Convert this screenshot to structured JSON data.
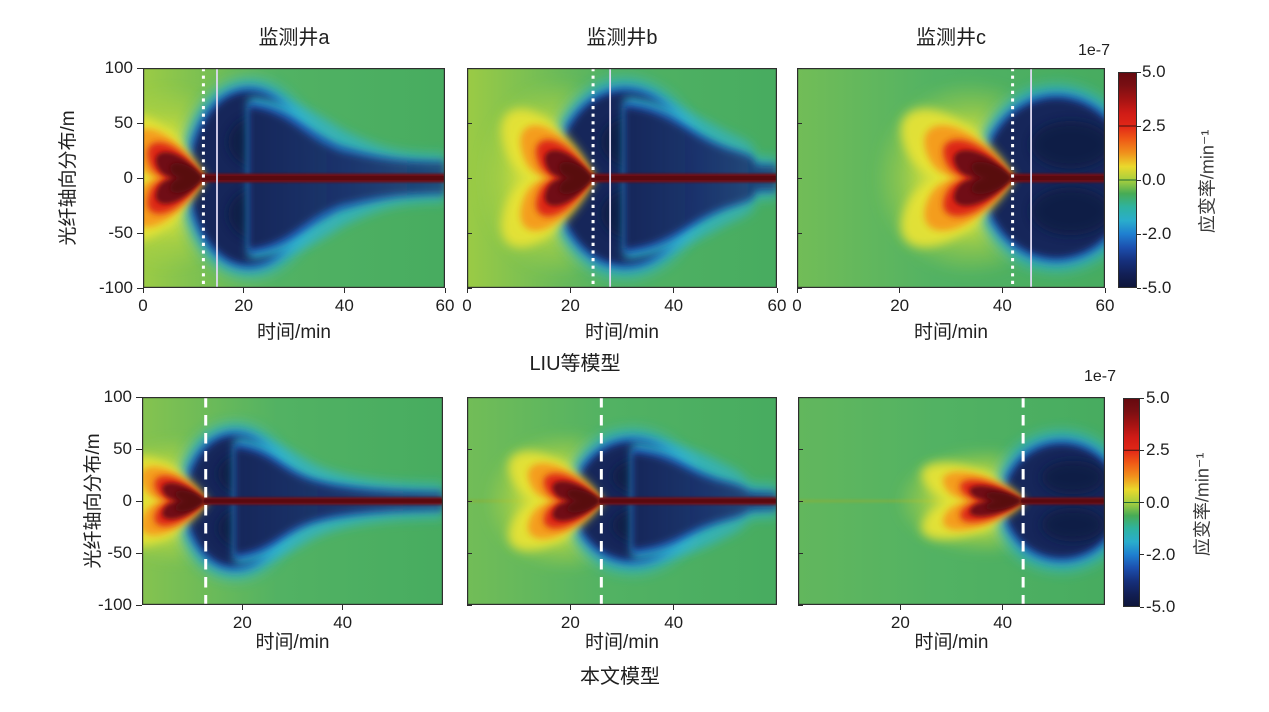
{
  "figure": {
    "row1_label": "LIU等模型",
    "row2_label": "本文模型",
    "xlabel": "时间/min",
    "ylabel": "光纤轴向分布/m",
    "scale_label": "1e-7",
    "colorbar": {
      "label": "应变率/min⁻¹",
      "scale": "1e-7",
      "ticks": [
        "5.0",
        "2.5",
        "0.0",
        "-2.0",
        "-5.0"
      ],
      "vmax": 5.0,
      "vmin": -5.0,
      "gradient": [
        "#64090f",
        "#7a0f13",
        "#a31313",
        "#cf1b16",
        "#e12717",
        "#ef5b16",
        "#f0911c",
        "#ead92c",
        "#a8cf3e",
        "#47ab55",
        "#2eb3a0",
        "#2aadcc",
        "#1f7fd0",
        "#1c4fae",
        "#16307c",
        "#121f55",
        "#0e1538"
      ]
    },
    "colors": {
      "background_green": "#4fb160",
      "yellow": "#e9e335",
      "orange": "#f59a1a",
      "red": "#dc2814",
      "maroon": "#701014",
      "dark_core": "#560b0e",
      "cyan": "#2fb3cf",
      "blue": "#1d53b4",
      "navy": "#18285a",
      "navy_dark": "#111d42",
      "marker_white": "#ffffff"
    }
  },
  "chart_data": [
    {
      "type": "heatmap",
      "model": "LIU等模型",
      "title": "监测井a",
      "xlabel": "时间/min",
      "x_range": [
        0,
        60
      ],
      "x_ticks": [
        0,
        20,
        40,
        60
      ],
      "x_tick_labels": [
        "0",
        "20",
        "40",
        "60"
      ],
      "ylabel": "光纤轴向分布/m",
      "y_range": [
        -100,
        100
      ],
      "y_ticks": [
        "100",
        "50",
        "0",
        "-50",
        "-100"
      ],
      "show_y_tick_labels": true,
      "value_label": "应变率/min⁻¹",
      "value_scale": "1e-7",
      "value_range": [
        -5,
        5
      ],
      "markers": {
        "dotted_line_min": 12,
        "solid_line_min": 14.7
      },
      "features": {
        "tensile_front_min": 12,
        "heart_start_min": 2.5,
        "heart_halfheight_m": 27,
        "halo_tint": 0.9,
        "neg_lobe_center_min": 21,
        "neg_lobe_halfwidth_min": 11.5,
        "neg_lobe_halfheight_m": 78,
        "tail_end_halfheight_m": 13,
        "band_halfheight_m": 4,
        "baseline_trace": false
      }
    },
    {
      "type": "heatmap",
      "model": "LIU等模型",
      "title": "监测井b",
      "xlabel": "时间/min",
      "x_range": [
        0,
        60
      ],
      "x_ticks": [
        0,
        20,
        40,
        60
      ],
      "x_tick_labels": [
        "0",
        "20",
        "40",
        "60"
      ],
      "ylabel": "光纤轴向分布/m",
      "y_range": [
        -100,
        100
      ],
      "y_ticks": [
        "100",
        "50",
        "0",
        "-50",
        "-100"
      ],
      "show_y_tick_labels": false,
      "value_label": "应变率/min⁻¹",
      "value_scale": "1e-7",
      "value_range": [
        -5,
        5
      ],
      "markers": {
        "dotted_line_min": 24.4,
        "solid_line_min": 27.7
      },
      "features": {
        "tensile_front_min": 24.4,
        "heart_start_min": 15,
        "heart_halfheight_m": 29,
        "halo_tint": 0.8,
        "neg_lobe_center_min": 30.5,
        "neg_lobe_halfwidth_min": 13,
        "neg_lobe_halfheight_m": 78,
        "tail_end_halfheight_m": 10,
        "band_halfheight_m": 4,
        "baseline_trace": false
      }
    },
    {
      "type": "heatmap",
      "model": "LIU等模型",
      "title": "监测井c",
      "xlabel": "时间/min",
      "x_range": [
        0,
        60
      ],
      "x_ticks": [
        0,
        20,
        40,
        60
      ],
      "x_tick_labels": [
        "0",
        "20",
        "40",
        "60"
      ],
      "ylabel": "光纤轴向分布/m",
      "y_range": [
        -100,
        100
      ],
      "y_ticks": [
        "100",
        "50",
        "0",
        "-50",
        "-100"
      ],
      "show_y_tick_labels": false,
      "value_label": "应变率/min⁻¹",
      "value_scale": "1e-7",
      "value_range": [
        -5,
        5
      ],
      "markers": {
        "dotted_line_min": 42,
        "solid_line_min": 45.6
      },
      "features": {
        "tensile_front_min": 42,
        "heart_start_min": 30.5,
        "heart_halfheight_m": 29,
        "halo_tint": 0.55,
        "neg_lobe_center_min": 50.5,
        "neg_lobe_halfwidth_min": 14,
        "neg_lobe_halfheight_m": 72,
        "tail_end_halfheight_m": null,
        "band_halfheight_m": 4,
        "baseline_trace": false
      }
    },
    {
      "type": "heatmap",
      "model": "本文模型",
      "title": "",
      "xlabel": "时间/min",
      "x_range": [
        0,
        60
      ],
      "x_ticks": [
        20,
        40
      ],
      "x_tick_labels": [
        "20",
        "40"
      ],
      "ylabel": "光纤轴向分布/m",
      "y_range": [
        -100,
        100
      ],
      "y_ticks": [
        "100",
        "50",
        "0",
        "-50",
        "-100"
      ],
      "show_y_tick_labels": true,
      "value_label": "应变率/min⁻¹",
      "value_scale": "1e-7",
      "value_range": [
        -5,
        5
      ],
      "markers": {
        "dashed_line_min": 12.7
      },
      "features": {
        "tensile_front_min": 12.7,
        "heart_start_min": 4,
        "heart_halfheight_m": 20,
        "halo_tint": 0.65,
        "neg_lobe_center_min": 18.5,
        "neg_lobe_halfwidth_min": 9.5,
        "neg_lobe_halfheight_m": 62,
        "tail_end_halfheight_m": 7,
        "band_halfheight_m": 3.6,
        "baseline_trace": true
      }
    },
    {
      "type": "heatmap",
      "model": "本文模型",
      "title": "",
      "xlabel": "时间/min",
      "x_range": [
        0,
        60
      ],
      "x_ticks": [
        20,
        40
      ],
      "x_tick_labels": [
        "20",
        "40"
      ],
      "ylabel": "光纤轴向分布/m",
      "y_range": [
        -100,
        100
      ],
      "y_ticks": [
        "100",
        "50",
        "0",
        "-50",
        "-100"
      ],
      "show_y_tick_labels": false,
      "value_label": "应变率/min⁻¹",
      "value_scale": "1e-7",
      "value_range": [
        -5,
        5
      ],
      "markers": {
        "dashed_line_min": 26
      },
      "features": {
        "tensile_front_min": 26,
        "heart_start_min": 16.5,
        "heart_halfheight_m": 22,
        "halo_tint": 0.5,
        "neg_lobe_center_min": 32,
        "neg_lobe_halfwidth_min": 11,
        "neg_lobe_halfheight_m": 56,
        "tail_end_halfheight_m": 6.5,
        "band_halfheight_m": 3.6,
        "baseline_trace": true
      }
    },
    {
      "type": "heatmap",
      "model": "本文模型",
      "title": "",
      "xlabel": "时间/min",
      "x_range": [
        0,
        60
      ],
      "x_ticks": [
        20,
        40
      ],
      "x_tick_labels": [
        "20",
        "40"
      ],
      "ylabel": "光纤轴向分布/m",
      "y_range": [
        -100,
        100
      ],
      "y_ticks": [
        "100",
        "50",
        "0",
        "-50",
        "-100"
      ],
      "show_y_tick_labels": false,
      "value_label": "应变率/min⁻¹",
      "value_scale": "1e-7",
      "value_range": [
        -5,
        5
      ],
      "markers": {
        "dashed_line_min": 44
      },
      "features": {
        "tensile_front_min": 44,
        "heart_start_min": 33.5,
        "heart_halfheight_m": 17,
        "halo_tint": 0.4,
        "neg_lobe_center_min": 51.5,
        "neg_lobe_halfwidth_min": 11,
        "neg_lobe_halfheight_m": 54,
        "tail_end_halfheight_m": null,
        "band_halfheight_m": 3.4,
        "baseline_trace": true
      }
    }
  ]
}
